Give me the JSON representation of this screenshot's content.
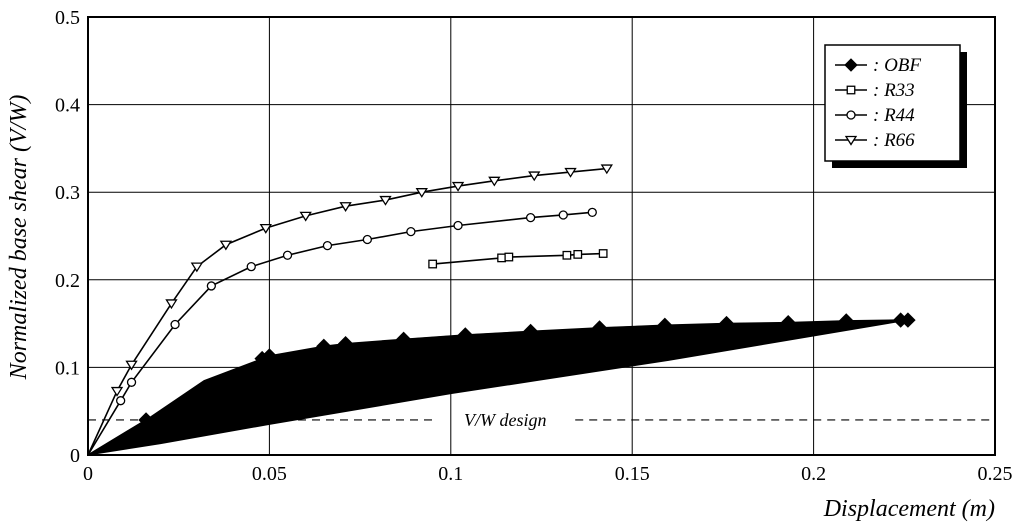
{
  "chart_data": {
    "type": "line",
    "xlabel": "Displacement (m)",
    "ylabel": "Normalized base shear (V/W)",
    "xlim": [
      0,
      0.25
    ],
    "ylim": [
      0,
      0.5
    ],
    "xticks": [
      0,
      0.05,
      0.1,
      0.15,
      0.2,
      0.25
    ],
    "xtick_labels": [
      "0",
      "0.05",
      "0.1",
      "0.15",
      "0.2",
      "0.25"
    ],
    "yticks": [
      0,
      0.1,
      0.2,
      0.3,
      0.4,
      0.5
    ],
    "ytick_labels": [
      "0",
      "0.1",
      "0.2",
      "0.3",
      "0.4",
      "0.5"
    ],
    "grid": true,
    "legend_position": "top-right",
    "design_line": {
      "value": 0.04,
      "label": "V/W design"
    },
    "series": [
      {
        "name": ": OBF",
        "marker": "diamond-filled",
        "x": [
          0,
          0.016,
          0.048,
          0.05,
          0.065,
          0.071,
          0.087,
          0.104,
          0.122,
          0.141,
          0.159,
          0.176,
          0.193,
          0.209,
          0.224,
          0.226
        ],
        "y": [
          0,
          0.04,
          0.11,
          0.113,
          0.124,
          0.127,
          0.132,
          0.137,
          0.141,
          0.145,
          0.148,
          0.15,
          0.151,
          0.153,
          0.154,
          0.154
        ],
        "upper_envelope": [
          [
            0,
            0
          ],
          [
            0.016,
            0.04
          ],
          [
            0.032,
            0.085
          ],
          [
            0.048,
            0.11
          ],
          [
            0.065,
            0.124
          ],
          [
            0.087,
            0.132
          ],
          [
            0.104,
            0.137
          ],
          [
            0.122,
            0.141
          ],
          [
            0.141,
            0.145
          ],
          [
            0.159,
            0.148
          ],
          [
            0.176,
            0.15
          ],
          [
            0.193,
            0.151
          ],
          [
            0.209,
            0.153
          ],
          [
            0.226,
            0.154
          ]
        ],
        "lower_envelope": [
          [
            0.226,
            0.154
          ],
          [
            0.16,
            0.108
          ],
          [
            0.1,
            0.07
          ],
          [
            0.05,
            0.035
          ],
          [
            0.02,
            0.013
          ],
          [
            0,
            0
          ]
        ]
      },
      {
        "name": ": R33",
        "marker": "square-open",
        "x": [
          0.095,
          0.114,
          0.116,
          0.132,
          0.135,
          0.142
        ],
        "y": [
          0.218,
          0.225,
          0.226,
          0.228,
          0.229,
          0.23
        ]
      },
      {
        "name": ": R44",
        "marker": "circle-open",
        "x": [
          0,
          0.009,
          0.012,
          0.024,
          0.034,
          0.045,
          0.055,
          0.066,
          0.077,
          0.089,
          0.102,
          0.122,
          0.131,
          0.139
        ],
        "y": [
          0,
          0.062,
          0.083,
          0.149,
          0.193,
          0.215,
          0.228,
          0.239,
          0.246,
          0.255,
          0.262,
          0.271,
          0.274,
          0.277
        ]
      },
      {
        "name": ": R66",
        "marker": "triangle-down-open",
        "x": [
          0,
          0.008,
          0.012,
          0.023,
          0.03,
          0.038,
          0.049,
          0.06,
          0.071,
          0.082,
          0.092,
          0.102,
          0.112,
          0.123,
          0.133,
          0.143
        ],
        "y": [
          0,
          0.073,
          0.103,
          0.173,
          0.215,
          0.24,
          0.259,
          0.273,
          0.284,
          0.291,
          0.3,
          0.307,
          0.313,
          0.319,
          0.323,
          0.327
        ]
      }
    ]
  }
}
